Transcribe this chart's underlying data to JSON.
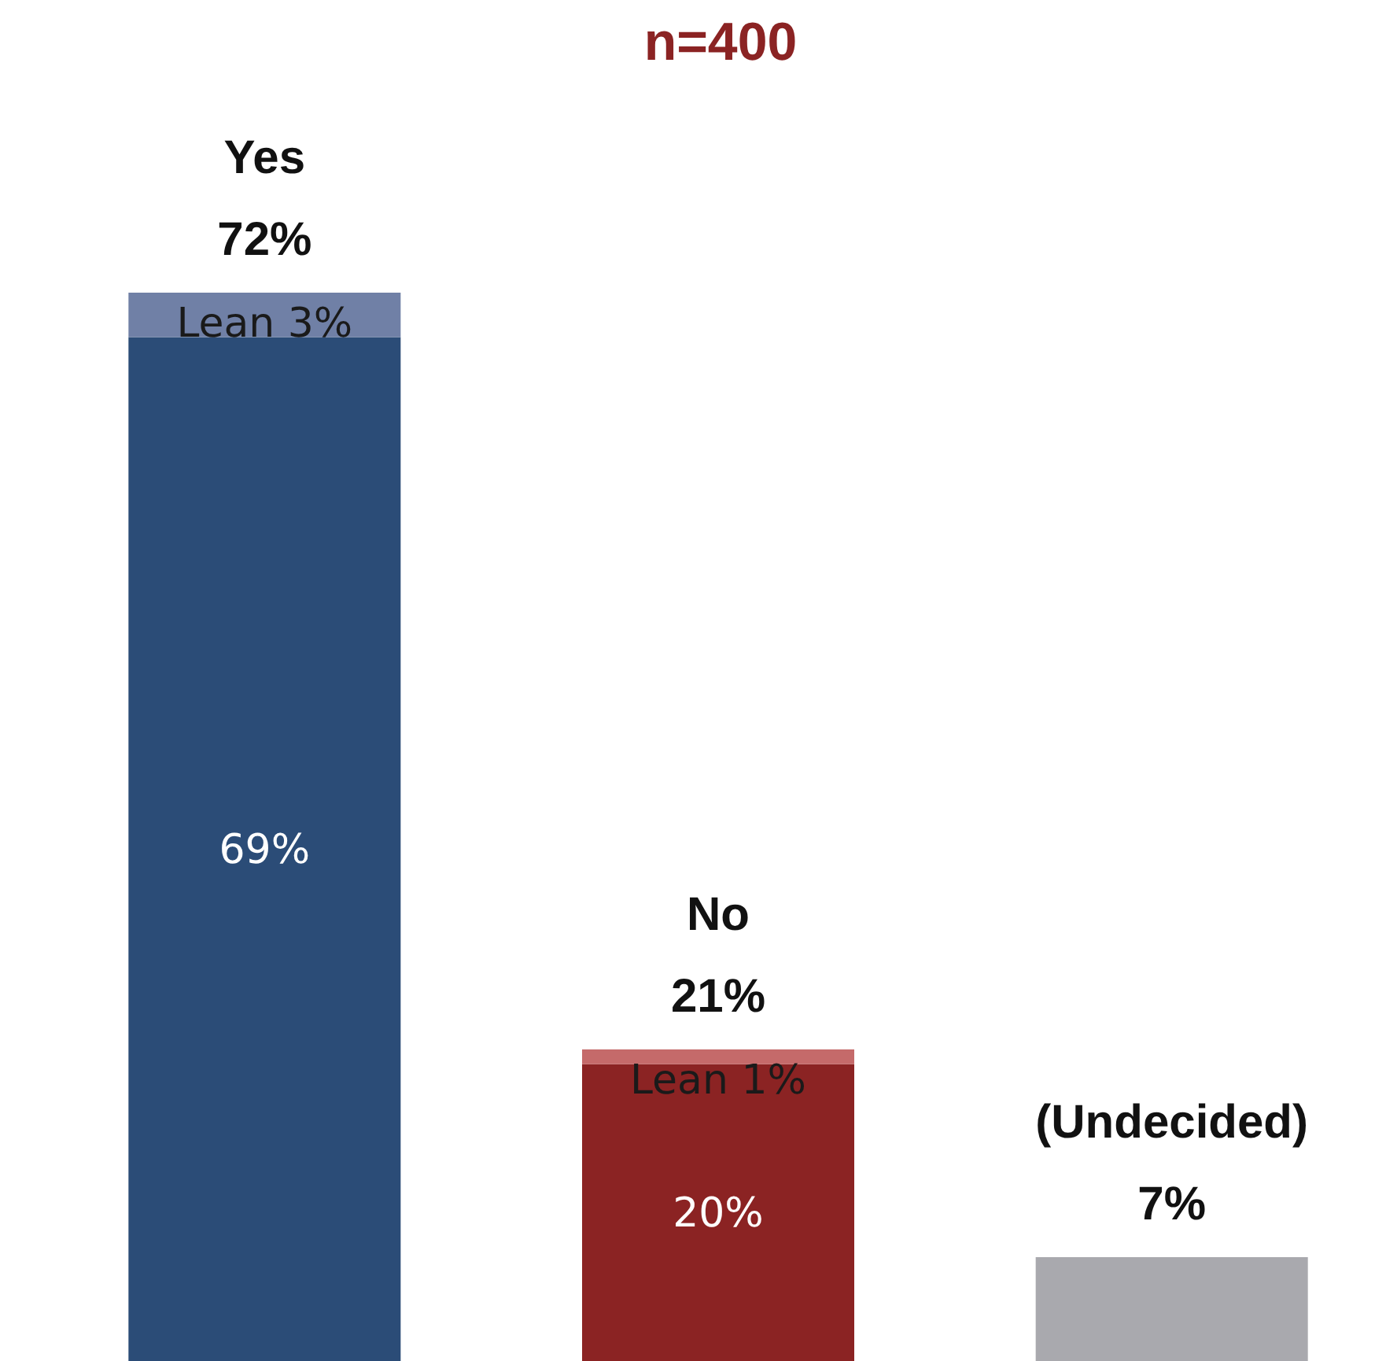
{
  "chart_data": {
    "type": "bar",
    "title": "n=400",
    "stacked": true,
    "categories": [
      "Yes",
      "No",
      "(Undecided)"
    ],
    "series": [
      {
        "colors": [
          "#2b4c77",
          "#8b2323",
          "#a9a9ae"
        ],
        "values": [
          69,
          20,
          7
        ],
        "value_labels": [
          "69%",
          "20%",
          null
        ]
      },
      {
        "colors": [
          "#7080a6",
          "#c56a6a",
          null
        ],
        "values": [
          3,
          1,
          null
        ],
        "value_labels": [
          "Lean 3%",
          "Lean 1%",
          null
        ]
      }
    ],
    "totals": [
      "72%",
      "21%",
      "7%"
    ]
  }
}
